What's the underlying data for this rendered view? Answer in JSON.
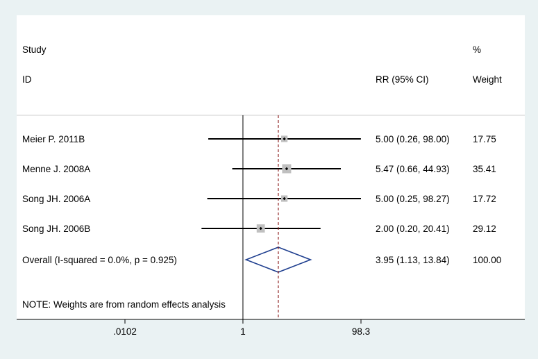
{
  "header": {
    "study_line1": "Study",
    "study_line2": "ID",
    "rr_label": "RR (95% CI)",
    "weight_line1": "%",
    "weight_line2": "Weight"
  },
  "note": "NOTE: Weights are from random effects analysis",
  "chart_data": {
    "type": "forest",
    "scale": "log",
    "x_ticks": [
      {
        "value": 0.0102,
        "label": ".0102"
      },
      {
        "value": 1,
        "label": "1"
      },
      {
        "value": 98.3,
        "label": "98.3"
      }
    ],
    "xlim": [
      0.0102,
      98.3
    ],
    "null_line": 1,
    "studies": [
      {
        "name": "Meier P. 2011B",
        "rr": 5.0,
        "lower": 0.26,
        "upper": 98.0,
        "ci_text": "5.00 (0.26, 98.00)",
        "weight": 17.75,
        "weight_text": "17.75"
      },
      {
        "name": "Menne J. 2008A",
        "rr": 5.47,
        "lower": 0.66,
        "upper": 44.93,
        "ci_text": "5.47 (0.66, 44.93)",
        "weight": 35.41,
        "weight_text": "35.41"
      },
      {
        "name": "Song JH. 2006A",
        "rr": 5.0,
        "lower": 0.25,
        "upper": 98.27,
        "ci_text": "5.00 (0.25, 98.27)",
        "weight": 17.72,
        "weight_text": "17.72"
      },
      {
        "name": "Song JH. 2006B",
        "rr": 2.0,
        "lower": 0.2,
        "upper": 20.41,
        "ci_text": "2.00 (0.20, 20.41)",
        "weight": 29.12,
        "weight_text": "29.12"
      }
    ],
    "overall": {
      "name": "Overall  (I-squared = 0.0%, p = 0.925)",
      "rr": 3.95,
      "lower": 1.13,
      "upper": 13.84,
      "ci_text": "3.95 (1.13, 13.84)",
      "weight_text": "100.00"
    },
    "colors": {
      "background": "#eaf2f3",
      "plot_area": "#ffffff",
      "ci_line": "#000000",
      "weight_box": "#c0c0c0",
      "overall_diamond": "#1f3f8f",
      "overall_line": "#8b1a1a"
    }
  }
}
